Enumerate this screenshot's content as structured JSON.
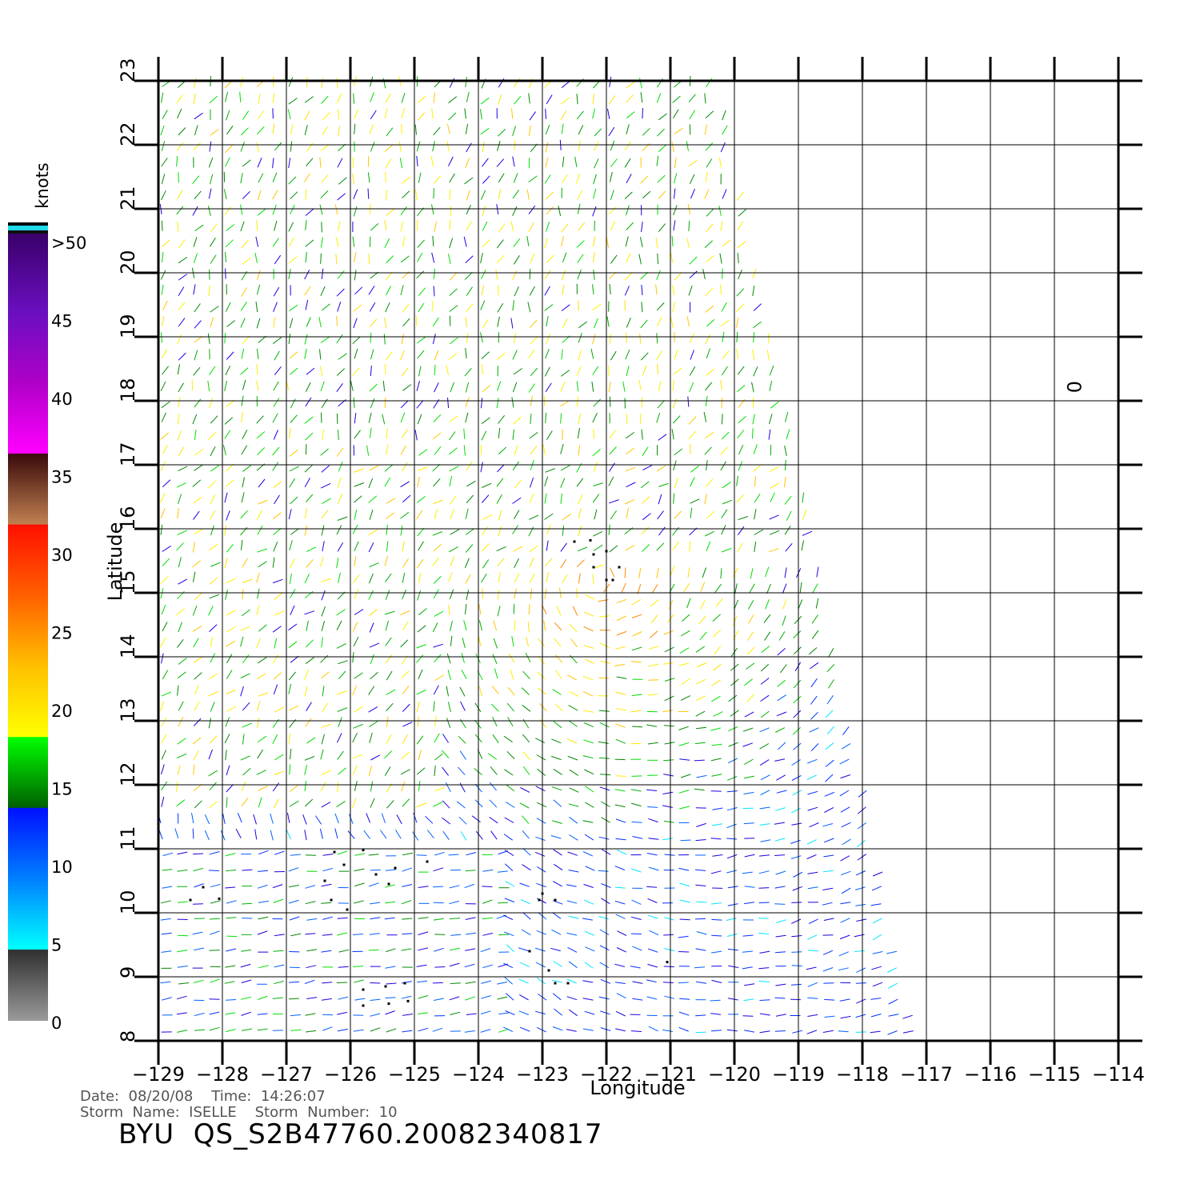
{
  "map": {
    "xlabel": "Longitude",
    "ylabel": "Latitude",
    "lon_ticks": [
      "−129",
      "−128",
      "−127",
      "−126",
      "−125",
      "−124",
      "−123",
      "−122",
      "−121",
      "−120",
      "−119",
      "−118",
      "−117",
      "−116",
      "−115",
      "−114"
    ],
    "lat_ticks": [
      "8",
      "9",
      "10",
      "11",
      "12",
      "13",
      "14",
      "15",
      "16",
      "17",
      "18",
      "19",
      "20",
      "21",
      "22",
      "23"
    ],
    "lon_range": [
      -129,
      -114
    ],
    "lat_range": [
      8,
      23
    ],
    "grid": true,
    "wind_field": "wind barbs over swath, lon -129 to about -117",
    "marker_symbol": "0"
  },
  "colorbar": {
    "title": "knots",
    "labels": [
      ">50",
      "45",
      "40",
      "35",
      "30",
      "25",
      "20",
      "15",
      "10",
      "5",
      "0"
    ],
    "colors": {
      "gt50": "#6a0fc0",
      "b45": "#b000c8",
      "b40": "#ff00ff",
      "b35": "#7a3a1a",
      "b30": "#ff2a00",
      "b25": "#ff8800",
      "b20": "#ffee00",
      "b15": "#00dd00",
      "b10": "#0044ff",
      "b5": "#00ffff",
      "b0": "#303030"
    }
  },
  "footer": {
    "date_line": "Date:  08/20/08    Time:  14:26:07",
    "storm_line": "Storm  Name:  ISELLE    Storm  Number:  10",
    "id": "BYU  QS_S2B47760.20082340817"
  }
}
